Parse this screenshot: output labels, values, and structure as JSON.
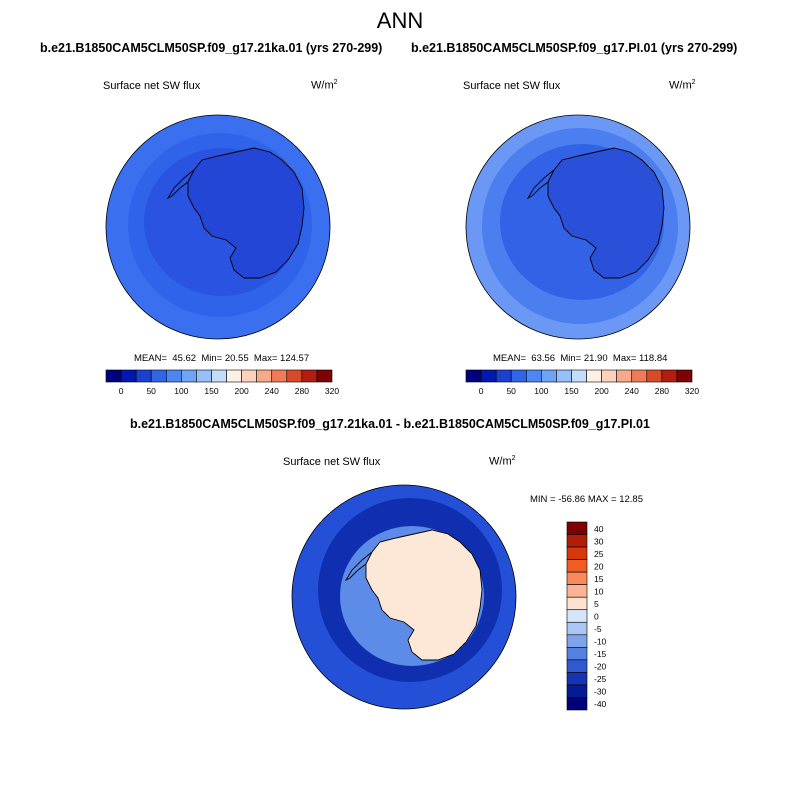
{
  "season": "ANN",
  "panels": [
    {
      "title": "b.e21.B1850CAM5CLM50SP.f09_g17.21ka.01 (yrs 270-299)",
      "variable": "Surface net SW flux",
      "units": "W/m",
      "units_exp": "2",
      "stats_mean_label": "MEAN=",
      "stats_mean": "45.62",
      "stats_min_label": "Min=",
      "stats_min": "20.55",
      "stats_max_label": "Max=",
      "stats_max": "124.57"
    },
    {
      "title": "b.e21.B1850CAM5CLM50SP.f09_g17.PI.01 (yrs 270-299)",
      "variable": "Surface net SW flux",
      "units": "W/m",
      "units_exp": "2",
      "stats_mean_label": "MEAN=",
      "stats_mean": "63.56",
      "stats_min_label": "Min=",
      "stats_min": "21.90",
      "stats_max_label": "Max=",
      "stats_max": "118.84"
    }
  ],
  "diff": {
    "title": "b.e21.B1850CAM5CLM50SP.f09_g17.21ka.01 - b.e21.B1850CAM5CLM50SP.f09_g17.PI.01",
    "variable": "Surface net SW flux",
    "units": "W/m",
    "units_exp": "2",
    "minmax_text": "MIN = -56.86 MAX =  12.85"
  },
  "main_colorbar": {
    "colors": [
      "#00007f",
      "#0018b0",
      "#1b3fcf",
      "#3366e6",
      "#4d85f2",
      "#6fa3f6",
      "#96c0f9",
      "#c2dcfb",
      "#fff0e6",
      "#fcd2bd",
      "#f7a98a",
      "#ef7b57",
      "#d94a2b",
      "#b21f12",
      "#7f0000"
    ],
    "ticks": [
      "0",
      "50",
      "100",
      "150",
      "200",
      "240",
      "280",
      "320"
    ]
  },
  "diff_colorbar": {
    "colors": [
      "#7f0000",
      "#b01e06",
      "#d6380c",
      "#f05d24",
      "#f88a5c",
      "#fbb493",
      "#fde2d0",
      "#d5e5fb",
      "#a9c6f4",
      "#7ea4ec",
      "#5581e1",
      "#3058cf",
      "#1633b4",
      "#061a94",
      "#00007a"
    ],
    "ticks": [
      "40",
      "30",
      "25",
      "20",
      "15",
      "10",
      "5",
      "0",
      "-5",
      "-10",
      "-15",
      "-20",
      "-25",
      "-30",
      "-40"
    ]
  },
  "colors": {
    "p1_ocean": "#3a6fef",
    "p1_ring": "#2f63ea",
    "p1_inner": "#2953e0",
    "p1_ice": "#2346d6",
    "p2_outer": "#6a98f4",
    "p2_mid": "#4b7ff0",
    "p2_inner": "#3262e6",
    "p2_ice": "#2a4fd8",
    "diff_outer": "#2450d8",
    "diff_mid": "#0f2fb0",
    "diff_coast": "#5d8be8",
    "diff_land": "#fde8d8",
    "coastline": "#000000"
  }
}
